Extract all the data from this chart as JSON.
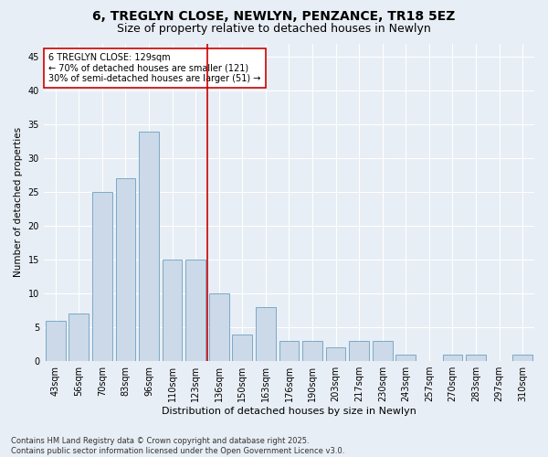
{
  "title": "6, TREGLYN CLOSE, NEWLYN, PENZANCE, TR18 5EZ",
  "subtitle": "Size of property relative to detached houses in Newlyn",
  "xlabel": "Distribution of detached houses by size in Newlyn",
  "ylabel": "Number of detached properties",
  "categories": [
    "43sqm",
    "56sqm",
    "70sqm",
    "83sqm",
    "96sqm",
    "110sqm",
    "123sqm",
    "136sqm",
    "150sqm",
    "163sqm",
    "176sqm",
    "190sqm",
    "203sqm",
    "217sqm",
    "230sqm",
    "243sqm",
    "257sqm",
    "270sqm",
    "283sqm",
    "297sqm",
    "310sqm"
  ],
  "values": [
    6,
    7,
    25,
    27,
    34,
    15,
    15,
    10,
    4,
    8,
    3,
    3,
    2,
    3,
    3,
    1,
    0,
    1,
    1,
    0,
    1
  ],
  "bar_color": "#ccd9e8",
  "bar_edge_color": "#7aaac8",
  "vline_color": "#cc0000",
  "annotation_text": "6 TREGLYN CLOSE: 129sqm\n← 70% of detached houses are smaller (121)\n30% of semi-detached houses are larger (51) →",
  "annotation_box_facecolor": "#ffffff",
  "annotation_box_edgecolor": "#cc0000",
  "ylim": [
    0,
    47
  ],
  "yticks": [
    0,
    5,
    10,
    15,
    20,
    25,
    30,
    35,
    40,
    45
  ],
  "background_color": "#e8eef5",
  "footer": "Contains HM Land Registry data © Crown copyright and database right 2025.\nContains public sector information licensed under the Open Government Licence v3.0.",
  "title_fontsize": 10,
  "subtitle_fontsize": 9,
  "xlabel_fontsize": 8,
  "ylabel_fontsize": 7.5,
  "tick_fontsize": 7,
  "annotation_fontsize": 7,
  "footer_fontsize": 6
}
